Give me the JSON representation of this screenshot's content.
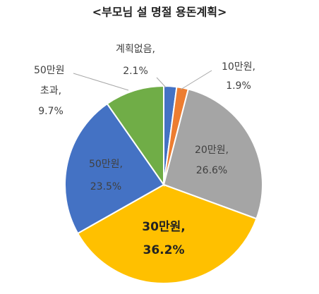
{
  "chart_data": {
    "type": "pie",
    "title": "<부모님 설 명절 용돈계획>",
    "categories": [
      "계획없음,",
      "10만원,",
      "20만원,",
      "30만원,",
      "50만원,",
      "50만원 초과,"
    ],
    "values": [
      2.1,
      1.9,
      26.6,
      36.2,
      23.5,
      9.7
    ],
    "value_labels": [
      "2.1%",
      "1.9%",
      "26.6%",
      "36.2%",
      "23.5%",
      "9.7%"
    ],
    "colors": [
      "#4472c4",
      "#ed7d31",
      "#a5a5a5",
      "#ffc000",
      "#4472c4",
      "#70ad47"
    ]
  }
}
